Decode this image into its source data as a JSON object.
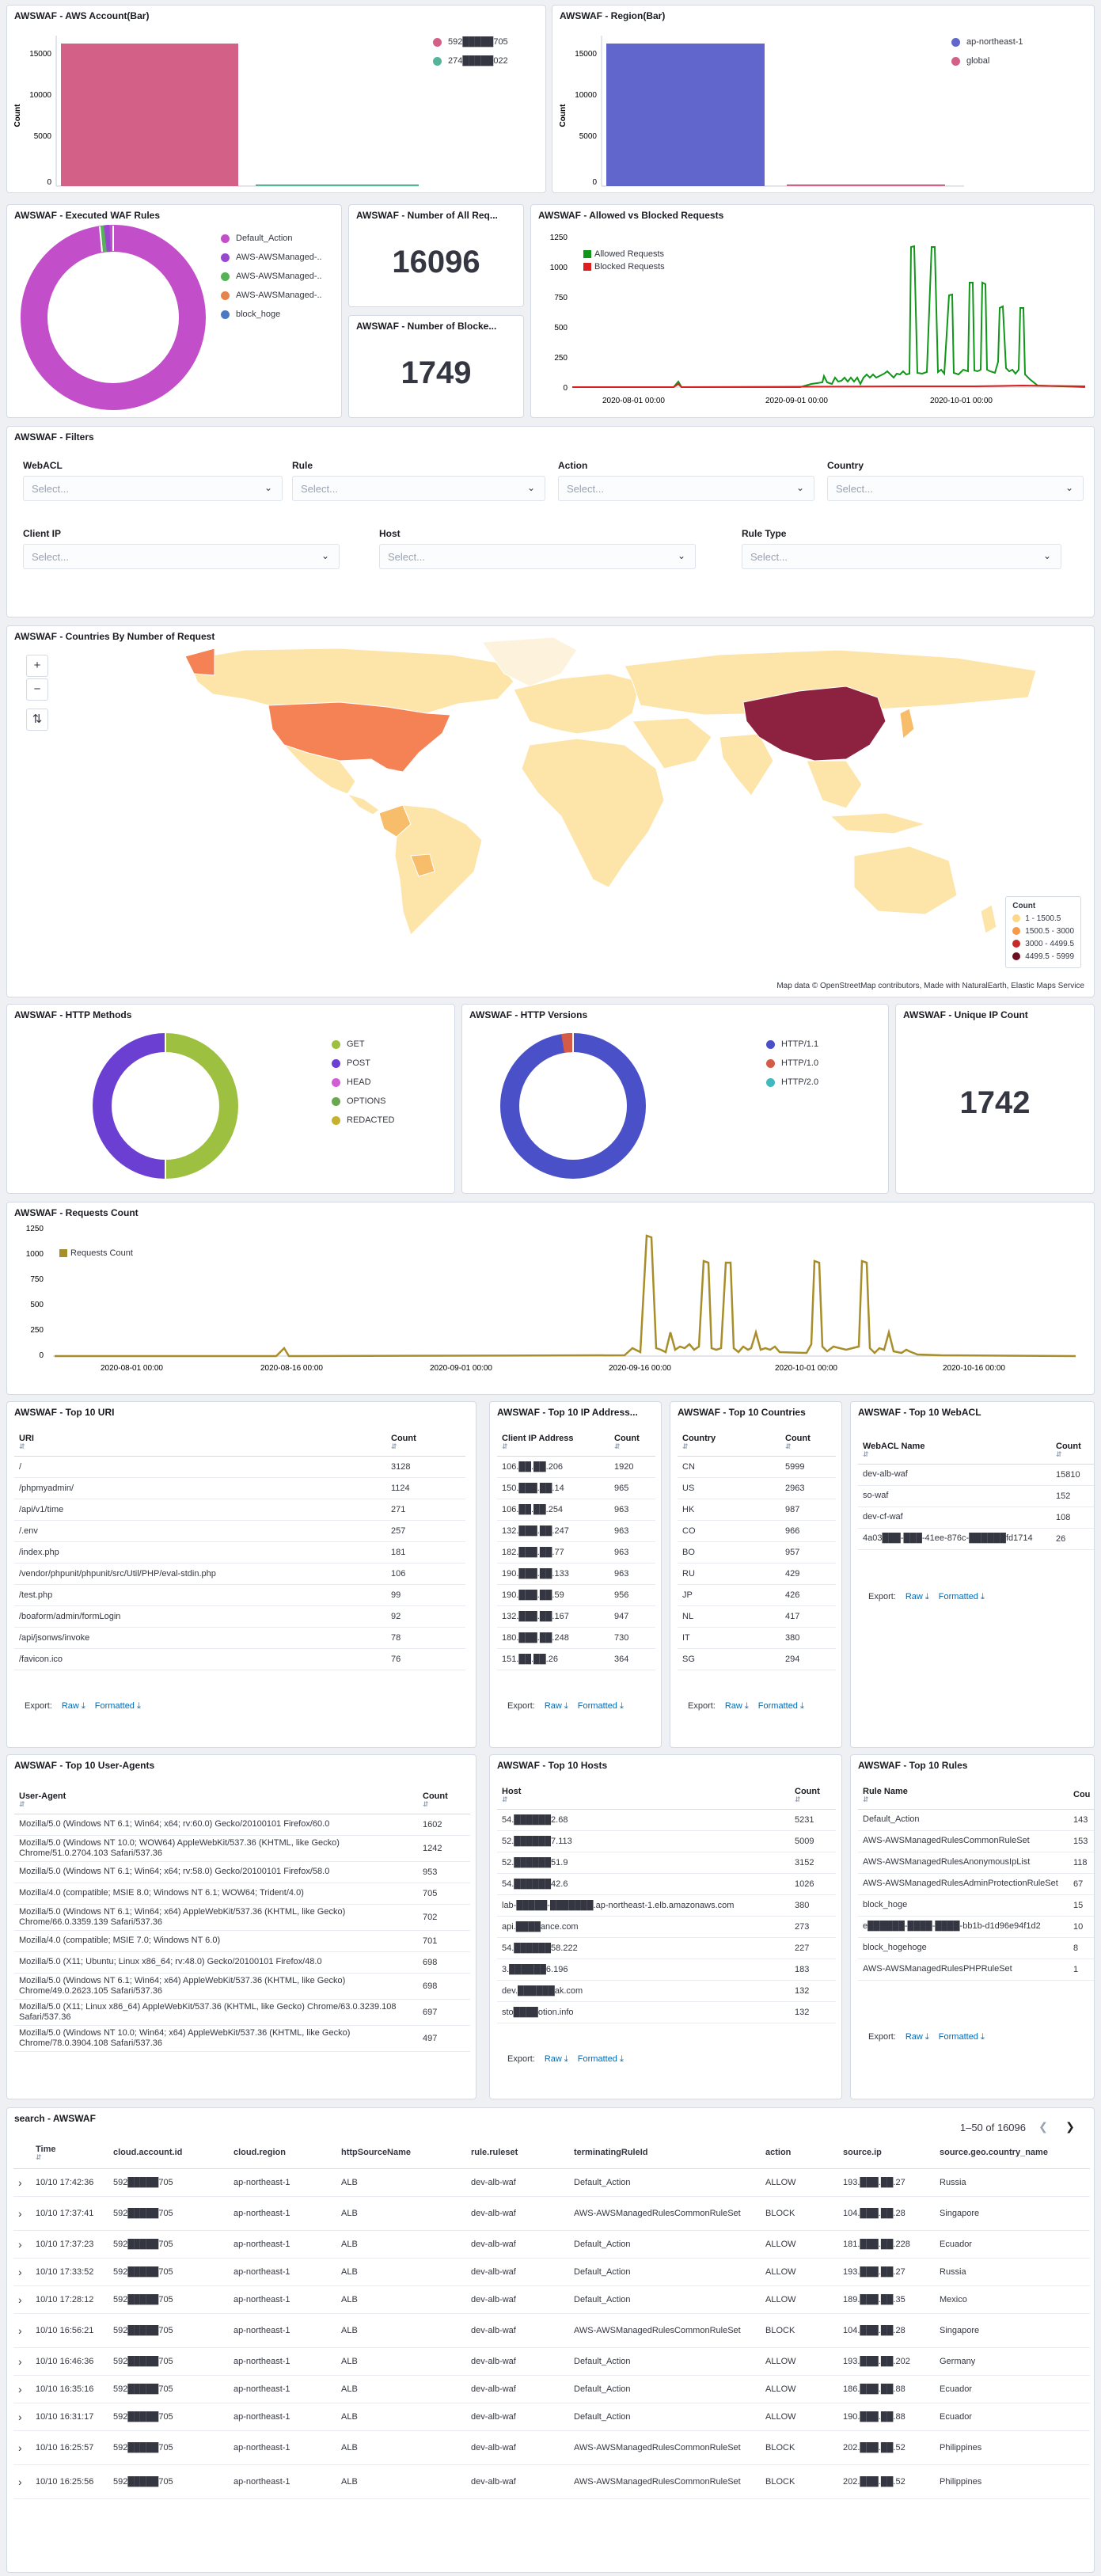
{
  "panels": {
    "account_bar": {
      "title": "AWSWAF - AWS Account(Bar)",
      "ylabel": "Count",
      "ticks": [
        "15000",
        "10000",
        "5000",
        "0"
      ],
      "legend": [
        {
          "label": "592█████705",
          "color": "#d36086"
        },
        {
          "label": "274█████022",
          "color": "#54b399"
        }
      ],
      "values": [
        16000,
        96
      ]
    },
    "region_bar": {
      "title": "AWSWAF - Region(Bar)",
      "ylabel": "Count",
      "ticks": [
        "15000",
        "10000",
        "5000",
        "0"
      ],
      "legend": [
        {
          "label": "ap-northeast-1",
          "color": "#6066cc"
        },
        {
          "label": "global",
          "color": "#d36086"
        }
      ],
      "values": [
        16000,
        96
      ]
    },
    "waf_rules": {
      "title": "AWSWAF - Executed WAF Rules",
      "legend": [
        {
          "label": "Default_Action",
          "color": "#c24fc9"
        },
        {
          "label": "AWS-AWSManaged-..",
          "color": "#9a47cf"
        },
        {
          "label": "AWS-AWSManaged-..",
          "color": "#54b356"
        },
        {
          "label": "AWS-AWSManaged-..",
          "color": "#e4844e"
        },
        {
          "label": "block_hoge",
          "color": "#4c79c3"
        }
      ]
    },
    "all_requests": {
      "title": "AWSWAF - Number of All Req...",
      "value": "16096"
    },
    "blocked_requests": {
      "title": "AWSWAF - Number of Blocke...",
      "value": "1749"
    },
    "allowed_blocked": {
      "title": "AWSWAF - Allowed vs Blocked Requests",
      "ticks": [
        "1250",
        "1000",
        "750",
        "500",
        "250",
        "0"
      ],
      "xticks": [
        "2020-08-01 00:00",
        "2020-09-01 00:00",
        "2020-10-01 00:00"
      ],
      "legend": [
        {
          "label": "Allowed Requests",
          "color": "#109618"
        },
        {
          "label": "Blocked Requests",
          "color": "#dc1f1f"
        }
      ]
    },
    "filters": {
      "title": "AWSWAF - Filters",
      "placeholder": "Select...",
      "fields": [
        "WebACL",
        "Rule",
        "Action",
        "Country",
        "Client IP",
        "Host",
        "Rule Type"
      ]
    },
    "countries_map": {
      "title": "AWSWAF - Countries By Number of Request",
      "legend_title": "Count",
      "legend": [
        {
          "label": "1 - 1500.5",
          "color": "#fdd888"
        },
        {
          "label": "1500.5 - 3000",
          "color": "#f59a4a"
        },
        {
          "label": "3000 - 4499.5",
          "color": "#c82a2a"
        },
        {
          "label": "4499.5 - 5999",
          "color": "#6e0f1f"
        }
      ],
      "attribution": "Map data © OpenStreetMap contributors, Made with NaturalEarth, Elastic Maps Service",
      "zoom_in": "+",
      "zoom_out": "−",
      "fit": "⇅"
    },
    "http_methods": {
      "title": "AWSWAF - HTTP Methods",
      "legend": [
        {
          "label": "GET",
          "color": "#9ec040"
        },
        {
          "label": "POST",
          "color": "#6b3fd2"
        },
        {
          "label": "HEAD",
          "color": "#d25ed6"
        },
        {
          "label": "OPTIONS",
          "color": "#6aa84f"
        },
        {
          "label": "REDACTED",
          "color": "#c8b02f"
        }
      ]
    },
    "http_versions": {
      "title": "AWSWAF - HTTP Versions",
      "legend": [
        {
          "label": "HTTP/1.1",
          "color": "#4a50c8"
        },
        {
          "label": "HTTP/1.0",
          "color": "#d35b48"
        },
        {
          "label": "HTTP/2.0",
          "color": "#3fb8c0"
        }
      ]
    },
    "unique_ip": {
      "title": "AWSWAF - Unique IP Count",
      "value": "1742"
    },
    "requests_count": {
      "title": "AWSWAF - Requests Count",
      "ticks": [
        "1250",
        "1000",
        "750",
        "500",
        "250",
        "0"
      ],
      "xticks": [
        "2020-08-01 00:00",
        "2020-08-16 00:00",
        "2020-09-01 00:00",
        "2020-09-16 00:00",
        "2020-10-01 00:00",
        "2020-10-16 00:00"
      ],
      "legend": [
        {
          "label": "Requests Count",
          "color": "#a88e2a"
        }
      ]
    },
    "top_uri": {
      "title": "AWSWAF - Top 10 URI",
      "headers": [
        "URI",
        "Count"
      ],
      "rows": [
        [
          "/",
          "3128"
        ],
        [
          "/phpmyadmin/",
          "1124"
        ],
        [
          "/api/v1/time",
          "271"
        ],
        [
          "/.env",
          "257"
        ],
        [
          "/index.php",
          "181"
        ],
        [
          "/vendor/phpunit/phpunit/src/Util/PHP/eval-stdin.php",
          "106"
        ],
        [
          "/test.php",
          "99"
        ],
        [
          "/boaform/admin/formLogin",
          "92"
        ],
        [
          "/api/jsonws/invoke",
          "78"
        ],
        [
          "/favicon.ico",
          "76"
        ]
      ]
    },
    "top_ip": {
      "title": "AWSWAF - Top 10 IP Address...",
      "headers": [
        "Client IP Address",
        "Count"
      ],
      "rows": [
        [
          "106.██.██.206",
          "1920"
        ],
        [
          "150.███.██.14",
          "965"
        ],
        [
          "106.██.██.254",
          "963"
        ],
        [
          "132.███.██.247",
          "963"
        ],
        [
          "182.███.██.77",
          "963"
        ],
        [
          "190.███.██.133",
          "963"
        ],
        [
          "190.███.██.59",
          "956"
        ],
        [
          "132.███.██.167",
          "947"
        ],
        [
          "180.███.██.248",
          "730"
        ],
        [
          "151.██.██.26",
          "364"
        ]
      ]
    },
    "top_countries": {
      "title": "AWSWAF - Top 10 Countries",
      "headers": [
        "Country",
        "Count"
      ],
      "rows": [
        [
          "CN",
          "5999"
        ],
        [
          "US",
          "2963"
        ],
        [
          "HK",
          "987"
        ],
        [
          "CO",
          "966"
        ],
        [
          "BO",
          "957"
        ],
        [
          "RU",
          "429"
        ],
        [
          "JP",
          "426"
        ],
        [
          "NL",
          "417"
        ],
        [
          "IT",
          "380"
        ],
        [
          "SG",
          "294"
        ]
      ]
    },
    "top_webacl": {
      "title": "AWSWAF - Top 10 WebACL",
      "headers": [
        "WebACL Name",
        "Count"
      ],
      "rows": [
        [
          "dev-alb-waf",
          "15810"
        ],
        [
          "so-waf",
          "152"
        ],
        [
          "dev-cf-waf",
          "108"
        ],
        [
          "4a03███-███-41ee-876c-██████fd1714",
          "26"
        ]
      ]
    },
    "top_ua": {
      "title": "AWSWAF - Top 10 User-Agents",
      "headers": [
        "User-Agent",
        "Count"
      ],
      "rows": [
        [
          "Mozilla/5.0 (Windows NT 6.1; Win64; x64; rv:60.0) Gecko/20100101 Firefox/60.0",
          "1602"
        ],
        [
          "Mozilla/5.0 (Windows NT 10.0; WOW64) AppleWebKit/537.36 (KHTML, like Gecko) Chrome/51.0.2704.103 Safari/537.36",
          "1242"
        ],
        [
          "Mozilla/5.0 (Windows NT 6.1; Win64; x64; rv:58.0) Gecko/20100101 Firefox/58.0",
          "953"
        ],
        [
          "Mozilla/4.0 (compatible; MSIE 8.0; Windows NT 6.1; WOW64; Trident/4.0)",
          "705"
        ],
        [
          "Mozilla/5.0 (Windows NT 6.1; Win64; x64) AppleWebKit/537.36 (KHTML, like Gecko) Chrome/66.0.3359.139 Safari/537.36",
          "702"
        ],
        [
          "Mozilla/4.0 (compatible; MSIE 7.0; Windows NT 6.0)",
          "701"
        ],
        [
          "Mozilla/5.0 (X11; Ubuntu; Linux x86_64; rv:48.0) Gecko/20100101 Firefox/48.0",
          "698"
        ],
        [
          "Mozilla/5.0 (Windows NT 6.1; Win64; x64) AppleWebKit/537.36 (KHTML, like Gecko) Chrome/49.0.2623.105 Safari/537.36",
          "698"
        ],
        [
          "Mozilla/5.0 (X11; Linux x86_64) AppleWebKit/537.36 (KHTML, like Gecko) Chrome/63.0.3239.108 Safari/537.36",
          "697"
        ],
        [
          "Mozilla/5.0 (Windows NT 10.0; Win64; x64) AppleWebKit/537.36 (KHTML, like Gecko) Chrome/78.0.3904.108 Safari/537.36",
          "497"
        ]
      ]
    },
    "top_hosts": {
      "title": "AWSWAF - Top 10 Hosts",
      "headers": [
        "Host",
        "Count"
      ],
      "rows": [
        [
          "54.██████2.68",
          "5231"
        ],
        [
          "52.██████7.113",
          "5009"
        ],
        [
          "52.██████51.9",
          "3152"
        ],
        [
          "54.██████42.6",
          "1026"
        ],
        [
          "lab-█████-███████.ap-northeast-1.elb.amazonaws.com",
          "380"
        ],
        [
          "api.████ance.com",
          "273"
        ],
        [
          "54.██████58.222",
          "227"
        ],
        [
          "3.██████6.196",
          "183"
        ],
        [
          "dev.██████ak.com",
          "132"
        ],
        [
          "sto████otion.info",
          "132"
        ]
      ]
    },
    "top_rules": {
      "title": "AWSWAF - Top 10 Rules",
      "headers": [
        "Rule Name",
        "Cou"
      ],
      "rows": [
        [
          "Default_Action",
          "143"
        ],
        [
          "AWS-AWSManagedRulesCommonRuleSet",
          "153"
        ],
        [
          "AWS-AWSManagedRulesAnonymousIpList",
          "118"
        ],
        [
          "AWS-AWSManagedRulesAdminProtectionRuleSet",
          "67"
        ],
        [
          "block_hoge",
          "15"
        ],
        [
          "e██████-████-████-bb1b-d1d96e94f1d2",
          "10"
        ],
        [
          "block_hogehoge",
          "8"
        ],
        [
          "AWS-AWSManagedRulesPHPRuleSet",
          "1"
        ]
      ]
    },
    "export": {
      "label": "Export:",
      "raw": "Raw",
      "formatted": "Formatted"
    }
  },
  "search": {
    "title": "search - AWSWAF",
    "pager_text": "1–50 of 16096",
    "headers": [
      "Time",
      "cloud.account.id",
      "cloud.region",
      "httpSourceName",
      "rule.ruleset",
      "terminatingRuleId",
      "action",
      "source.ip",
      "source.geo.country_name"
    ],
    "rows": [
      [
        "10/10 17:42:36",
        "592█████705",
        "ap-northeast-1",
        "ALB",
        "dev-alb-waf",
        "Default_Action",
        "ALLOW",
        "193.███.██.27",
        "Russia"
      ],
      [
        "10/10 17:37:41",
        "592█████705",
        "ap-northeast-1",
        "ALB",
        "dev-alb-waf",
        "AWS-AWSManagedRulesCommonRuleSet",
        "BLOCK",
        "104.███.██.28",
        "Singapore"
      ],
      [
        "10/10 17:37:23",
        "592█████705",
        "ap-northeast-1",
        "ALB",
        "dev-alb-waf",
        "Default_Action",
        "ALLOW",
        "181.███.██.228",
        "Ecuador"
      ],
      [
        "10/10 17:33:52",
        "592█████705",
        "ap-northeast-1",
        "ALB",
        "dev-alb-waf",
        "Default_Action",
        "ALLOW",
        "193.███.██.27",
        "Russia"
      ],
      [
        "10/10 17:28:12",
        "592█████705",
        "ap-northeast-1",
        "ALB",
        "dev-alb-waf",
        "Default_Action",
        "ALLOW",
        "189.███.██.35",
        "Mexico"
      ],
      [
        "10/10 16:56:21",
        "592█████705",
        "ap-northeast-1",
        "ALB",
        "dev-alb-waf",
        "AWS-AWSManagedRulesCommonRuleSet",
        "BLOCK",
        "104.███.██.28",
        "Singapore"
      ],
      [
        "10/10 16:46:36",
        "592█████705",
        "ap-northeast-1",
        "ALB",
        "dev-alb-waf",
        "Default_Action",
        "ALLOW",
        "193.███.██.202",
        "Germany"
      ],
      [
        "10/10 16:35:16",
        "592█████705",
        "ap-northeast-1",
        "ALB",
        "dev-alb-waf",
        "Default_Action",
        "ALLOW",
        "186.███.██.88",
        "Ecuador"
      ],
      [
        "10/10 16:31:17",
        "592█████705",
        "ap-northeast-1",
        "ALB",
        "dev-alb-waf",
        "Default_Action",
        "ALLOW",
        "190.███.██.88",
        "Ecuador"
      ],
      [
        "10/10 16:25:57",
        "592█████705",
        "ap-northeast-1",
        "ALB",
        "dev-alb-waf",
        "AWS-AWSManagedRulesCommonRuleSet",
        "BLOCK",
        "202.███.██.52",
        "Philippines"
      ],
      [
        "10/10 16:25:56",
        "592█████705",
        "ap-northeast-1",
        "ALB",
        "dev-alb-waf",
        "AWS-AWSManagedRulesCommonRuleSet",
        "BLOCK",
        "202.███.██.52",
        "Philippines"
      ]
    ]
  }
}
